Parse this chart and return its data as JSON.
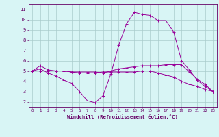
{
  "x_hours": [
    0,
    1,
    2,
    3,
    4,
    5,
    6,
    7,
    8,
    9,
    10,
    11,
    12,
    13,
    14,
    15,
    16,
    17,
    18,
    19,
    20,
    21,
    22,
    23
  ],
  "line1": [
    5.0,
    5.5,
    5.1,
    5.0,
    5.0,
    4.9,
    4.9,
    4.9,
    4.9,
    4.8,
    5.0,
    5.2,
    5.3,
    5.4,
    5.5,
    5.5,
    5.5,
    5.6,
    5.6,
    5.6,
    4.9,
    4.2,
    3.7,
    3.0
  ],
  "line2": [
    5.0,
    5.2,
    4.8,
    4.5,
    4.1,
    3.8,
    3.0,
    2.1,
    1.9,
    2.6,
    4.7,
    7.5,
    9.6,
    10.7,
    10.5,
    10.4,
    9.9,
    9.9,
    8.8,
    6.0,
    5.1,
    4.1,
    3.5,
    3.0
  ],
  "line3": [
    5.0,
    5.0,
    5.0,
    5.0,
    5.0,
    4.9,
    4.8,
    4.8,
    4.8,
    4.9,
    4.9,
    4.9,
    4.9,
    4.9,
    5.0,
    5.0,
    4.8,
    4.6,
    4.4,
    4.0,
    3.7,
    3.5,
    3.2,
    3.0
  ],
  "line_color": "#990099",
  "bg_color": "#d8f5f5",
  "grid_color": "#aacccc",
  "axis_color": "#660066",
  "text_color": "#660066",
  "xlabel": "Windchill (Refroidissement éolien,°C)",
  "xlim": [
    -0.5,
    23.5
  ],
  "ylim": [
    1.5,
    11.5
  ],
  "yticks": [
    2,
    3,
    4,
    5,
    6,
    7,
    8,
    9,
    10,
    11
  ],
  "xticks": [
    0,
    1,
    2,
    3,
    4,
    5,
    6,
    7,
    8,
    9,
    10,
    11,
    12,
    13,
    14,
    15,
    16,
    17,
    18,
    19,
    20,
    21,
    22,
    23
  ]
}
